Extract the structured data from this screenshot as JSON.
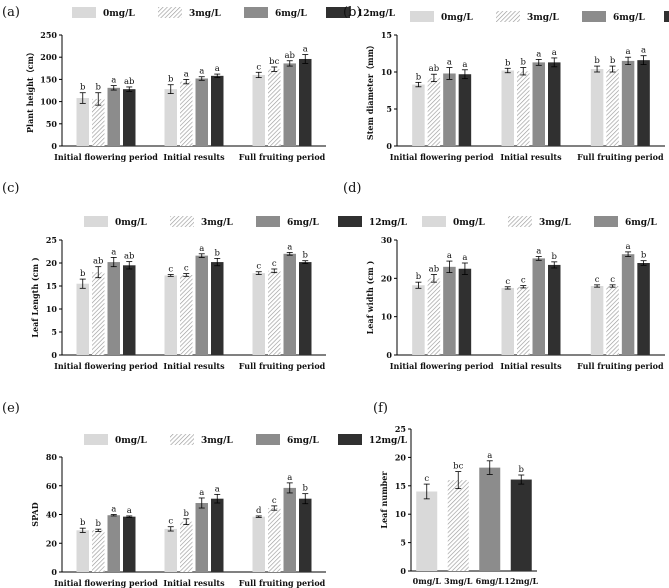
{
  "legend_labels": [
    "0mg/L",
    "3mg/L",
    "6mg/L",
    "12mg/L"
  ],
  "series_colors": [
    "#d9d9d9",
    "hatch",
    "#8c8c8c",
    "#303030"
  ],
  "chart_data": [
    {
      "id": "a",
      "panel_label": "(a)",
      "type": "bar",
      "ylabel": "Plant height（cm）",
      "ylim": [
        0,
        250
      ],
      "yticks": [
        0,
        50,
        100,
        150,
        200,
        250
      ],
      "categories": [
        "Initial flowering period",
        "Initial results",
        "Full fruiting period"
      ],
      "series": [
        {
          "name": "0mg/L",
          "values": [
            108,
            128,
            160
          ],
          "errors": [
            12,
            10,
            6
          ],
          "letters": [
            "b",
            "b",
            "c"
          ]
        },
        {
          "name": "3mg/L",
          "values": [
            106,
            145,
            173
          ],
          "errors": [
            14,
            5,
            5
          ],
          "letters": [
            "b",
            "a",
            "bc"
          ]
        },
        {
          "name": "6mg/L",
          "values": [
            131,
            152,
            186
          ],
          "errors": [
            5,
            4,
            6
          ],
          "letters": [
            "a",
            "a",
            "ab"
          ]
        },
        {
          "name": "12mg/L",
          "values": [
            128,
            158,
            196
          ],
          "errors": [
            5,
            4,
            10
          ],
          "letters": [
            "ab",
            "a",
            "a"
          ]
        }
      ]
    },
    {
      "id": "b",
      "panel_label": "(b)",
      "type": "bar",
      "ylabel": "Stem diameter（mm）",
      "ylim": [
        0,
        15
      ],
      "yticks": [
        0,
        5,
        10,
        15
      ],
      "categories": [
        "Initial flowering period",
        "Initial results",
        "Full fruiting period"
      ],
      "series": [
        {
          "name": "0mg/L",
          "values": [
            8.3,
            10.2,
            10.4
          ],
          "errors": [
            0.3,
            0.3,
            0.4
          ],
          "letters": [
            "b",
            "b",
            "b"
          ]
        },
        {
          "name": "3mg/L",
          "values": [
            9.2,
            10.1,
            10.4
          ],
          "errors": [
            0.5,
            0.5,
            0.4
          ],
          "letters": [
            "ab",
            "b",
            "b"
          ]
        },
        {
          "name": "6mg/L",
          "values": [
            9.8,
            11.3,
            11.5
          ],
          "errors": [
            0.8,
            0.4,
            0.5
          ],
          "letters": [
            "a",
            "a",
            "a"
          ]
        },
        {
          "name": "12mg/L",
          "values": [
            9.7,
            11.3,
            11.6
          ],
          "errors": [
            0.6,
            0.6,
            0.6
          ],
          "letters": [
            "a",
            "a",
            "a"
          ]
        }
      ]
    },
    {
      "id": "c",
      "panel_label": "(c)",
      "type": "bar",
      "ylabel": "Leaf Length (cm )",
      "ylim": [
        0,
        25
      ],
      "yticks": [
        0,
        5,
        10,
        15,
        20,
        25
      ],
      "categories": [
        "Initial flowering period",
        "Initial results",
        "Full fruiting period"
      ],
      "series": [
        {
          "name": "0mg/L",
          "values": [
            15.5,
            17.3,
            17.8
          ],
          "errors": [
            1.0,
            0.2,
            0.3
          ],
          "letters": [
            "b",
            "c",
            "c"
          ]
        },
        {
          "name": "3mg/L",
          "values": [
            18.0,
            17.4,
            18.3
          ],
          "errors": [
            1.2,
            0.3,
            0.4
          ],
          "letters": [
            "ab",
            "c",
            "c"
          ]
        },
        {
          "name": "6mg/L",
          "values": [
            20.2,
            21.6,
            22.0
          ],
          "errors": [
            1.0,
            0.4,
            0.3
          ],
          "letters": [
            "a",
            "a",
            "a"
          ]
        },
        {
          "name": "12mg/L",
          "values": [
            19.5,
            20.2,
            20.2
          ],
          "errors": [
            0.8,
            0.8,
            0.3
          ],
          "letters": [
            "ab",
            "b",
            "b"
          ]
        }
      ]
    },
    {
      "id": "d",
      "panel_label": "(d)",
      "type": "bar",
      "ylabel": "Leaf width (cm )",
      "ylim": [
        0,
        30
      ],
      "yticks": [
        0,
        10,
        20,
        30
      ],
      "categories": [
        "Initial flowering period",
        "Initial results",
        "Full fruiting period"
      ],
      "series": [
        {
          "name": "0mg/L",
          "values": [
            18.2,
            17.5,
            18.0
          ],
          "errors": [
            0.8,
            0.3,
            0.3
          ],
          "letters": [
            "b",
            "c",
            "c"
          ]
        },
        {
          "name": "3mg/L",
          "values": [
            20.0,
            17.8,
            18.0
          ],
          "errors": [
            1.0,
            0.3,
            0.3
          ],
          "letters": [
            "ab",
            "c",
            "c"
          ]
        },
        {
          "name": "6mg/L",
          "values": [
            23.0,
            25.2,
            26.3
          ],
          "errors": [
            1.5,
            0.5,
            0.6
          ],
          "letters": [
            "a",
            "a",
            "a"
          ]
        },
        {
          "name": "12mg/L",
          "values": [
            22.5,
            23.5,
            24.0
          ],
          "errors": [
            1.5,
            0.8,
            0.6
          ],
          "letters": [
            "a",
            "b",
            "b"
          ]
        }
      ]
    },
    {
      "id": "e",
      "panel_label": "(e)",
      "type": "bar",
      "ylabel": "SPAD",
      "ylim": [
        0,
        80
      ],
      "yticks": [
        0,
        20,
        40,
        60,
        80
      ],
      "categories": [
        "Initial flowering period",
        "Initial results",
        "Full fruiting period"
      ],
      "series": [
        {
          "name": "0mg/L",
          "values": [
            29,
            30,
            38.5
          ],
          "errors": [
            1.5,
            1.5,
            0.5
          ],
          "letters": [
            "b",
            "c",
            "d"
          ]
        },
        {
          "name": "3mg/L",
          "values": [
            29,
            35,
            44.5
          ],
          "errors": [
            0.8,
            2.0,
            1.5
          ],
          "letters": [
            "b",
            "b",
            "c"
          ]
        },
        {
          "name": "6mg/L",
          "values": [
            39.5,
            48,
            58.5
          ],
          "errors": [
            0.5,
            3.5,
            3.5
          ],
          "letters": [
            "a",
            "a",
            "a"
          ]
        },
        {
          "name": "12mg/L",
          "values": [
            38.5,
            51,
            51
          ],
          "errors": [
            0.5,
            3.0,
            3.5
          ],
          "letters": [
            "a",
            "a",
            "b"
          ]
        }
      ]
    },
    {
      "id": "f",
      "panel_label": "(f)",
      "type": "bar",
      "ylabel": "Leaf number",
      "ylim": [
        0,
        25
      ],
      "yticks": [
        0,
        5,
        10,
        15,
        20,
        25
      ],
      "categories": [
        "0mg/L",
        "3mg/L",
        "6mg/L",
        "12mg/L"
      ],
      "values": [
        14,
        16,
        18.2,
        16.1
      ],
      "errors": [
        1.3,
        1.5,
        1.2,
        0.8
      ],
      "letters": [
        "c",
        "bc",
        "a",
        "b"
      ]
    }
  ]
}
